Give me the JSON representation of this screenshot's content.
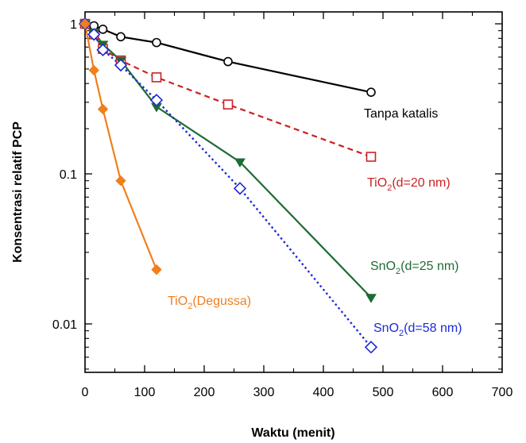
{
  "chart_data": {
    "type": "line",
    "xlabel": "Waktu (menit)",
    "ylabel": "Konsentrasi relatif PCP",
    "xlim": [
      0,
      700
    ],
    "ylim": [
      0.005,
      1.1
    ],
    "yscale": "log",
    "xticks": [
      "0",
      "100",
      "200",
      "300",
      "400",
      "500",
      "600",
      "700"
    ],
    "yticks": [
      {
        "value": 1,
        "label": "1"
      },
      {
        "value": 0.1,
        "label": "0.1"
      },
      {
        "value": 0.01,
        "label": "0.01"
      }
    ],
    "grid": false,
    "series": [
      {
        "label_parts": [
          "Tanpa katalis"
        ],
        "color": "#000000",
        "dash": "solid",
        "marker": "circle-open",
        "x": [
          0,
          15,
          30,
          60,
          120,
          240,
          480
        ],
        "y": [
          1.0,
          0.97,
          0.92,
          0.82,
          0.75,
          0.56,
          0.35
        ]
      },
      {
        "label_parts": [
          "TiO",
          "2",
          "(d=20 nm)"
        ],
        "color": "#cc2222",
        "dash": "dashed",
        "marker": "square-open",
        "x": [
          0,
          15,
          30,
          60,
          120,
          240,
          480
        ],
        "y": [
          1.0,
          0.85,
          0.68,
          0.57,
          0.44,
          0.29,
          0.13
        ]
      },
      {
        "label_parts": [
          "SnO",
          "2",
          "(d=25 nm)"
        ],
        "color": "#1e6b34",
        "dash": "solid",
        "marker": "triangle-down-filled",
        "x": [
          0,
          15,
          30,
          60,
          120,
          260,
          480
        ],
        "y": [
          1.0,
          0.88,
          0.73,
          0.57,
          0.28,
          0.12,
          0.015
        ]
      },
      {
        "label_parts": [
          "SnO",
          "2",
          "(d=58 nm)"
        ],
        "color": "#1c2ad6",
        "dash": "dotted",
        "marker": "diamond-open",
        "x": [
          0,
          15,
          30,
          60,
          120,
          260,
          480
        ],
        "y": [
          1.0,
          0.85,
          0.67,
          0.53,
          0.31,
          0.08,
          0.007
        ]
      },
      {
        "label_parts": [
          "TiO",
          "2",
          "(Degussa)"
        ],
        "color": "#f07f1d",
        "dash": "solid",
        "marker": "diamond-filled",
        "x": [
          0,
          15,
          30,
          60,
          120
        ],
        "y": [
          1.0,
          0.49,
          0.27,
          0.09,
          0.023
        ]
      }
    ]
  }
}
